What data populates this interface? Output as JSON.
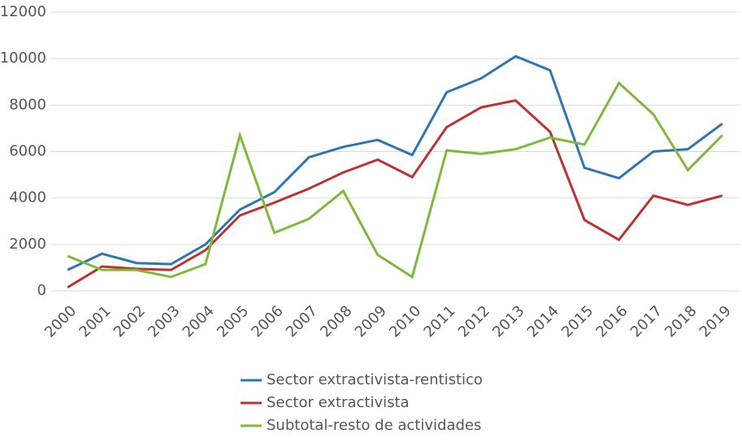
{
  "chart_data": {
    "type": "line",
    "categories": [
      "2000",
      "2001",
      "2002",
      "2003",
      "2004",
      "2005",
      "2006",
      "2007",
      "2008",
      "2009",
      "2010",
      "2011",
      "2012",
      "2013",
      "2014",
      "2015",
      "2016",
      "2017",
      "2018",
      "2019"
    ],
    "series": [
      {
        "name": "Sector extractivista-rentistico",
        "color": "#2e75b6",
        "values": [
          900,
          1600,
          1200,
          1150,
          2000,
          3500,
          4250,
          5750,
          6200,
          6500,
          5850,
          8550,
          9150,
          10100,
          9500,
          5300,
          4850,
          6000,
          6100,
          7200
        ]
      },
      {
        "name": "Sector extractivista",
        "color": "#c0302f",
        "values": [
          150,
          1050,
          950,
          900,
          1750,
          3250,
          3800,
          4400,
          5100,
          5650,
          4900,
          7050,
          7900,
          8200,
          6850,
          3050,
          2200,
          4100,
          3700,
          4100
        ]
      },
      {
        "name": "Subtotal-resto de actividades",
        "color": "#7dba3a",
        "values": [
          1500,
          900,
          900,
          600,
          1150,
          6700,
          2500,
          3100,
          4300,
          1550,
          600,
          6050,
          5900,
          6100,
          6600,
          6300,
          8950,
          7600,
          5200,
          6700
        ]
      }
    ],
    "ylim": [
      0,
      12000
    ],
    "yticks": [
      0,
      2000,
      4000,
      6000,
      8000,
      10000,
      12000
    ],
    "grid": true,
    "legend": "bottom"
  }
}
